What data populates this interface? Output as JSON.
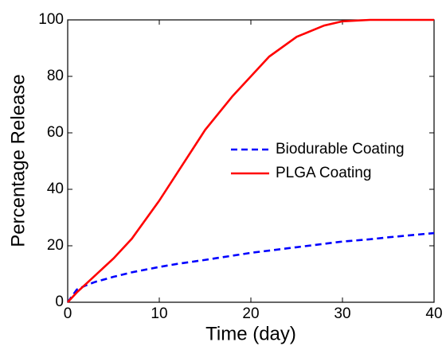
{
  "chart_data": {
    "type": "line",
    "xlabel": "Time (day)",
    "ylabel": "Percentage Release",
    "x": [
      0,
      1,
      2,
      3,
      5,
      7,
      10,
      12,
      15,
      18,
      20,
      22,
      25,
      28,
      30,
      33,
      35,
      40
    ],
    "series": [
      {
        "name": "Biodurable Coating",
        "color": "#0000ff",
        "linestyle": "dashed",
        "values": [
          0,
          4.5,
          6,
          7.2,
          9,
          10.6,
          12.5,
          13.6,
          15,
          16.5,
          17.5,
          18.3,
          19.5,
          20.7,
          21.5,
          22.3,
          23,
          24.5
        ]
      },
      {
        "name": "PLGA Coating",
        "color": "#ff0000",
        "linestyle": "solid",
        "values": [
          0,
          3.5,
          6.5,
          9.5,
          15.5,
          22.5,
          36,
          46,
          61,
          73,
          80,
          87,
          94,
          98,
          99.5,
          100,
          100,
          100
        ]
      }
    ],
    "xlim": [
      0,
      40
    ],
    "ylim": [
      0,
      100
    ],
    "xticks": [
      0,
      10,
      20,
      30,
      40
    ],
    "yticks": [
      0,
      20,
      40,
      60,
      80,
      100
    ],
    "legend": "center right"
  }
}
